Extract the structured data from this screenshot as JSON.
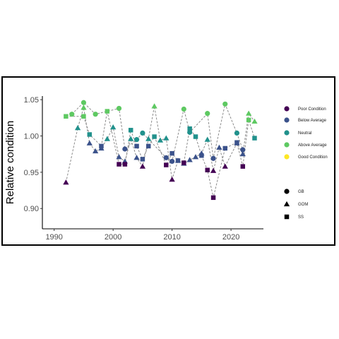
{
  "chart_data": {
    "type": "scatter",
    "title": "",
    "xlabel": "",
    "ylabel": "Relative condition",
    "xlim": [
      1988,
      2025.5
    ],
    "ylim": [
      0.872,
      1.055
    ],
    "x_ticks": [
      1990,
      2000,
      2010,
      2020
    ],
    "y_ticks": [
      0.9,
      0.95,
      1.0,
      1.05
    ],
    "y_tick_labels": [
      "0.90",
      "0.95",
      "1.00",
      "1.05"
    ],
    "grid": false,
    "legend_position": "right",
    "color_legend": [
      {
        "key": "poor",
        "label": "Poor Condition",
        "color": "#440154"
      },
      {
        "key": "below",
        "label": "Below Average",
        "color": "#3b528b"
      },
      {
        "key": "neutral",
        "label": "Neutral",
        "color": "#21918c"
      },
      {
        "key": "above",
        "label": "Above Average",
        "color": "#5ec962"
      },
      {
        "key": "good",
        "label": "Good Condition",
        "color": "#fde725"
      }
    ],
    "shape_legend": [
      {
        "key": "circle",
        "label": "GB"
      },
      {
        "key": "triangle",
        "label": "GOM"
      },
      {
        "key": "square",
        "label": "SS"
      }
    ],
    "series": [
      {
        "name": "GB",
        "shape": "circle",
        "connected": true,
        "points": [
          {
            "x": 1993,
            "y": 1.03,
            "c": "above"
          },
          {
            "x": 1995,
            "y": 1.046,
            "c": "above"
          },
          {
            "x": 1997,
            "y": 1.03,
            "c": "above"
          },
          {
            "x": 2001,
            "y": 1.038,
            "c": "above"
          },
          {
            "x": 2002,
            "y": 0.982,
            "c": "below"
          },
          {
            "x": 2004,
            "y": 0.995,
            "c": "neutral"
          },
          {
            "x": 2005,
            "y": 1.004,
            "c": "neutral"
          },
          {
            "x": 2009,
            "y": 0.97,
            "c": "below"
          },
          {
            "x": 2010,
            "y": 0.965,
            "c": "below"
          },
          {
            "x": 2012,
            "y": 1.037,
            "c": "above"
          },
          {
            "x": 2013,
            "y": 1.005,
            "c": "neutral"
          },
          {
            "x": 2016,
            "y": 1.031,
            "c": "above"
          },
          {
            "x": 2017,
            "y": 0.969,
            "c": "below"
          },
          {
            "x": 2019,
            "y": 1.044,
            "c": "above"
          },
          {
            "x": 2021,
            "y": 1.004,
            "c": "neutral"
          },
          {
            "x": 2022,
            "y": 0.981,
            "c": "below"
          }
        ]
      },
      {
        "name": "GOM",
        "shape": "triangle",
        "connected": true,
        "points": [
          {
            "x": 1992,
            "y": 0.936,
            "c": "poor"
          },
          {
            "x": 1994,
            "y": 1.011,
            "c": "neutral"
          },
          {
            "x": 1995,
            "y": 1.039,
            "c": "above"
          },
          {
            "x": 1996,
            "y": 0.99,
            "c": "below"
          },
          {
            "x": 1997,
            "y": 0.979,
            "c": "below"
          },
          {
            "x": 1998,
            "y": 0.983,
            "c": "below"
          },
          {
            "x": 1999,
            "y": 0.996,
            "c": "neutral"
          },
          {
            "x": 2000,
            "y": 1.012,
            "c": "neutral"
          },
          {
            "x": 2001,
            "y": 0.971,
            "c": "below"
          },
          {
            "x": 2002,
            "y": 0.965,
            "c": "below"
          },
          {
            "x": 2003,
            "y": 0.996,
            "c": "neutral"
          },
          {
            "x": 2004,
            "y": 0.97,
            "c": "below"
          },
          {
            "x": 2005,
            "y": 0.958,
            "c": "poor"
          },
          {
            "x": 2006,
            "y": 0.996,
            "c": "neutral"
          },
          {
            "x": 2007,
            "y": 1.041,
            "c": "above"
          },
          {
            "x": 2008,
            "y": 0.994,
            "c": "neutral"
          },
          {
            "x": 2009,
            "y": 0.997,
            "c": "neutral"
          },
          {
            "x": 2010,
            "y": 0.94,
            "c": "poor"
          },
          {
            "x": 2011,
            "y": 0.966,
            "c": "below"
          },
          {
            "x": 2012,
            "y": 0.962,
            "c": "below"
          },
          {
            "x": 2013,
            "y": 0.967,
            "c": "below"
          },
          {
            "x": 2014,
            "y": 0.971,
            "c": "below"
          },
          {
            "x": 2015,
            "y": 0.976,
            "c": "below"
          },
          {
            "x": 2016,
            "y": 0.995,
            "c": "neutral"
          },
          {
            "x": 2017,
            "y": 0.952,
            "c": "poor"
          },
          {
            "x": 2018,
            "y": 0.984,
            "c": "below"
          },
          {
            "x": 2019,
            "y": 0.958,
            "c": "poor"
          },
          {
            "x": 2021,
            "y": 0.99,
            "c": "below"
          },
          {
            "x": 2022,
            "y": 0.975,
            "c": "below"
          },
          {
            "x": 2023,
            "y": 1.031,
            "c": "above"
          },
          {
            "x": 2024,
            "y": 1.02,
            "c": "above"
          }
        ]
      },
      {
        "name": "SS",
        "shape": "square",
        "connected": true,
        "points": [
          {
            "x": 1992,
            "y": 1.027,
            "c": "above"
          },
          {
            "x": 1995,
            "y": 1.027,
            "c": "above"
          },
          {
            "x": 1996,
            "y": 1.002,
            "c": "neutral"
          },
          {
            "x": 1998,
            "y": 0.986,
            "c": "below"
          },
          {
            "x": 1999,
            "y": 1.034,
            "c": "above"
          },
          {
            "x": 2001,
            "y": 0.961,
            "c": "poor"
          },
          {
            "x": 2002,
            "y": 0.961,
            "c": "poor"
          },
          {
            "x": 2003,
            "y": 1.008,
            "c": "neutral"
          },
          {
            "x": 2004,
            "y": 0.986,
            "c": "below"
          },
          {
            "x": 2005,
            "y": 0.968,
            "c": "below"
          },
          {
            "x": 2006,
            "y": 0.986,
            "c": "below"
          },
          {
            "x": 2007,
            "y": 0.999,
            "c": "neutral"
          },
          {
            "x": 2009,
            "y": 0.96,
            "c": "poor"
          },
          {
            "x": 2010,
            "y": 0.976,
            "c": "below"
          },
          {
            "x": 2011,
            "y": 0.966,
            "c": "below"
          },
          {
            "x": 2012,
            "y": 0.963,
            "c": "poor"
          },
          {
            "x": 2013,
            "y": 1.01,
            "c": "neutral"
          },
          {
            "x": 2014,
            "y": 0.999,
            "c": "neutral"
          },
          {
            "x": 2015,
            "y": 0.973,
            "c": "below"
          },
          {
            "x": 2016,
            "y": 0.953,
            "c": "poor"
          },
          {
            "x": 2017,
            "y": 0.915,
            "c": "poor"
          },
          {
            "x": 2019,
            "y": 0.983,
            "c": "below"
          },
          {
            "x": 2021,
            "y": 0.991,
            "c": "below"
          },
          {
            "x": 2022,
            "y": 0.958,
            "c": "poor"
          },
          {
            "x": 2023,
            "y": 1.022,
            "c": "above"
          },
          {
            "x": 2024,
            "y": 0.997,
            "c": "neutral"
          }
        ]
      }
    ]
  }
}
